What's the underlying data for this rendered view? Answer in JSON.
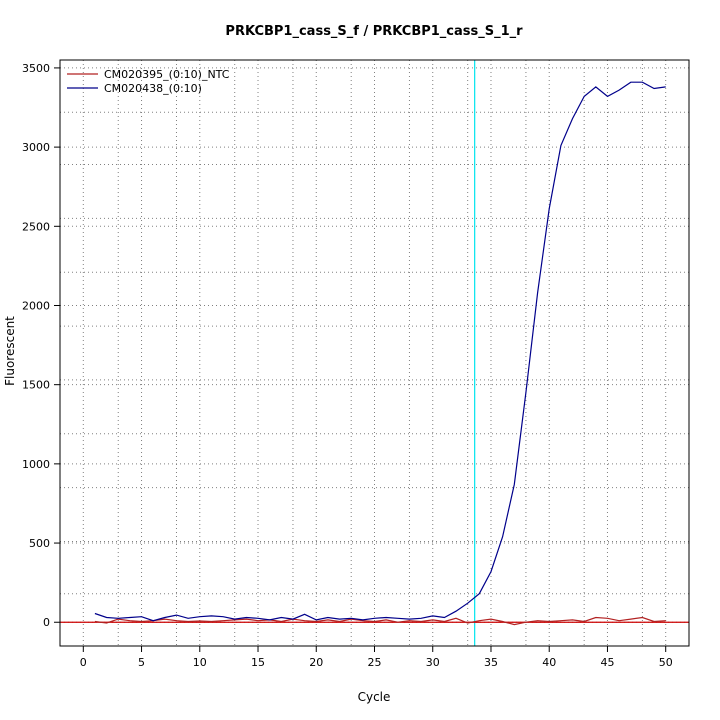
{
  "chart_data": {
    "type": "line",
    "title": "PRKCBP1_cass_S_f / PRKCBP1_cass_S_1_r",
    "xlabel": "Cycle",
    "ylabel": "Fluorescent",
    "xlim": [
      -2,
      52
    ],
    "ylim": [
      -150,
      3550
    ],
    "x_ticks": [
      0,
      5,
      10,
      15,
      20,
      25,
      30,
      35,
      40,
      45,
      50
    ],
    "y_ticks": [
      0,
      500,
      1000,
      1500,
      2000,
      2500,
      3000,
      3500
    ],
    "x_minor_grid": [
      3,
      8,
      13,
      18,
      23,
      28,
      33,
      38,
      43,
      48
    ],
    "y_minor_grid": [
      180,
      510,
      850,
      1190,
      1530,
      1870,
      2210,
      2550,
      2890,
      3220
    ],
    "grid": true,
    "grid_style": "dotted",
    "threshold_line": {
      "x": 33.6,
      "color": "#00e5ee"
    },
    "baseline": {
      "y": 0,
      "color": "#cc0000"
    },
    "legend_position": "top-left",
    "x": [
      1,
      2,
      3,
      4,
      5,
      6,
      7,
      8,
      9,
      10,
      11,
      12,
      13,
      14,
      15,
      16,
      17,
      18,
      19,
      20,
      21,
      22,
      23,
      24,
      25,
      26,
      27,
      28,
      29,
      30,
      31,
      32,
      33,
      34,
      35,
      36,
      37,
      38,
      39,
      40,
      41,
      42,
      43,
      44,
      45,
      46,
      47,
      48,
      49,
      50
    ],
    "series": [
      {
        "name": "CM020395_(0:10)_NTC",
        "color": "#b22222",
        "values": [
          5,
          -5,
          20,
          10,
          5,
          10,
          20,
          10,
          5,
          8,
          5,
          10,
          15,
          20,
          10,
          15,
          5,
          20,
          10,
          5,
          15,
          5,
          20,
          10,
          5,
          15,
          0,
          10,
          5,
          15,
          5,
          25,
          -5,
          10,
          20,
          5,
          -15,
          0,
          10,
          5,
          10,
          15,
          5,
          30,
          25,
          10,
          20,
          30,
          5,
          10
        ]
      },
      {
        "name": "CM020438_(0:10)",
        "color": "#00008b",
        "values": [
          55,
          30,
          25,
          30,
          35,
          10,
          30,
          45,
          25,
          35,
          40,
          35,
          20,
          30,
          25,
          15,
          30,
          20,
          50,
          15,
          30,
          20,
          25,
          15,
          25,
          30,
          25,
          20,
          25,
          40,
          30,
          70,
          120,
          180,
          320,
          540,
          870,
          1450,
          2080,
          2610,
          3010,
          3180,
          3320,
          3380,
          3320,
          3360,
          3410,
          3410,
          3370,
          3380
        ]
      }
    ]
  }
}
